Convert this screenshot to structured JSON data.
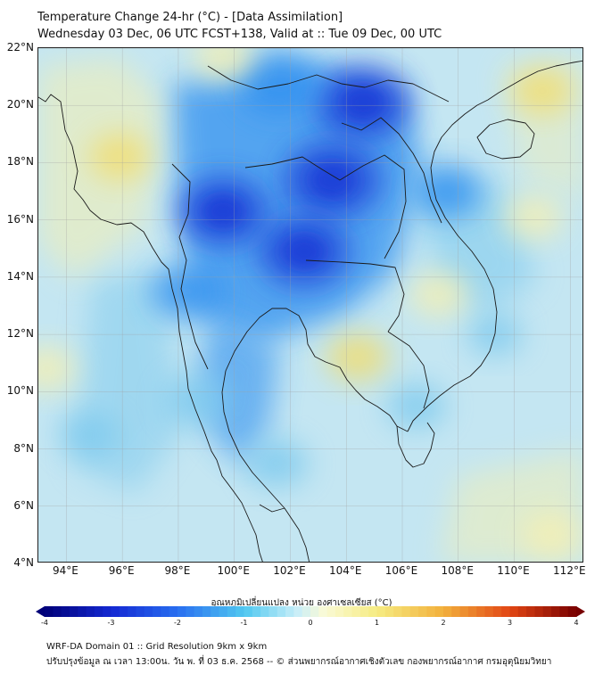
{
  "header": {
    "title_line1": "Temperature Change 24-hr (°C) - [Data Assimilation]",
    "title_line2": "Wednesday 03 Dec, 06 UTC FCST+138, Valid at :: Tue 09 Dec, 00 UTC"
  },
  "map": {
    "lat_labels": [
      "22°N",
      "20°N",
      "18°N",
      "16°N",
      "14°N",
      "12°N",
      "10°N",
      "8°N",
      "6°N",
      "4°N"
    ],
    "lon_labels": [
      "94°E",
      "96°E",
      "98°E",
      "100°E",
      "102°E",
      "104°E",
      "106°E",
      "108°E",
      "110°E",
      "112°E"
    ],
    "lat_range": [
      4,
      22
    ],
    "lon_range": [
      93,
      112.5
    ],
    "anomalies": [
      {
        "type": "cool",
        "lon": 104.6,
        "lat": 20.1,
        "value": -2.5
      },
      {
        "type": "cool",
        "lon": 103.5,
        "lat": 17.4,
        "value": -2.6
      },
      {
        "type": "cool",
        "lon": 102.5,
        "lat": 14.9,
        "value": -2.3
      },
      {
        "type": "cool",
        "lon": 99.6,
        "lat": 16.3,
        "value": -2.2
      },
      {
        "type": "cool",
        "lon": 101.6,
        "lat": 20.8,
        "value": -1.9
      },
      {
        "type": "cool",
        "lon": 98.3,
        "lat": 13.5,
        "value": -1.4
      },
      {
        "type": "cool",
        "lon": 98.7,
        "lat": 9.7,
        "value": -1.2
      },
      {
        "type": "cool",
        "lon": 107.6,
        "lat": 17.0,
        "value": -1.3
      },
      {
        "type": "cool",
        "lon": 101.5,
        "lat": 7.5,
        "value": -1.0
      },
      {
        "type": "cool",
        "lon": 94.8,
        "lat": 8.5,
        "value": -0.8
      },
      {
        "type": "cool",
        "lon": 106.5,
        "lat": 9.5,
        "value": -0.8
      },
      {
        "type": "cool",
        "lon": 109.3,
        "lat": 12.0,
        "value": -0.6
      },
      {
        "type": "warm",
        "lon": 95.9,
        "lat": 18.2,
        "value": 0.9
      },
      {
        "type": "warm",
        "lon": 99.6,
        "lat": 21.7,
        "value": 0.8
      },
      {
        "type": "warm",
        "lon": 111.0,
        "lat": 20.5,
        "value": 0.9
      },
      {
        "type": "warm",
        "lon": 110.7,
        "lat": 16.1,
        "value": 0.8
      },
      {
        "type": "warm",
        "lon": 104.4,
        "lat": 11.2,
        "value": 1.0
      },
      {
        "type": "warm",
        "lon": 107.3,
        "lat": 13.4,
        "value": 0.8
      },
      {
        "type": "warm",
        "lon": 93.3,
        "lat": 10.8,
        "value": 0.8
      },
      {
        "type": "warm",
        "lon": 111.3,
        "lat": 5.0,
        "value": 0.7
      }
    ]
  },
  "colorbar": {
    "title": "อุณหภูมิเปลี่ยนแปลง หน่วย องศาเซลเซียส (°C)",
    "ticks": [
      "-4",
      "-3",
      "-2",
      "-1",
      "0",
      "1",
      "2",
      "3",
      "4"
    ],
    "range": [
      -4,
      4
    ]
  },
  "footer": {
    "line1": "WRF-DA Domain 01 :: Grid Resolution 9km x 9km",
    "line2": "ปรับปรุงข้อมูล ณ เวลา 13:00น. วัน พ. ที่ 03 ธ.ค. 2568 -- © ส่วนพยากรณ์อากาศเชิงตัวเลข กองพยากรณ์อากาศ กรมอุตุนิยมวิทยา"
  },
  "colors": {
    "base": "#c4e6f2",
    "cool_strong": "#1a3fd8",
    "cool_mid": "#2f8ff0",
    "cool_light": "#7cc9ee",
    "warm_light": "#f6f0b0",
    "warm_mid": "#f3dd6c",
    "coast": "#1a1a1a",
    "grid": "#a0a0a0"
  }
}
